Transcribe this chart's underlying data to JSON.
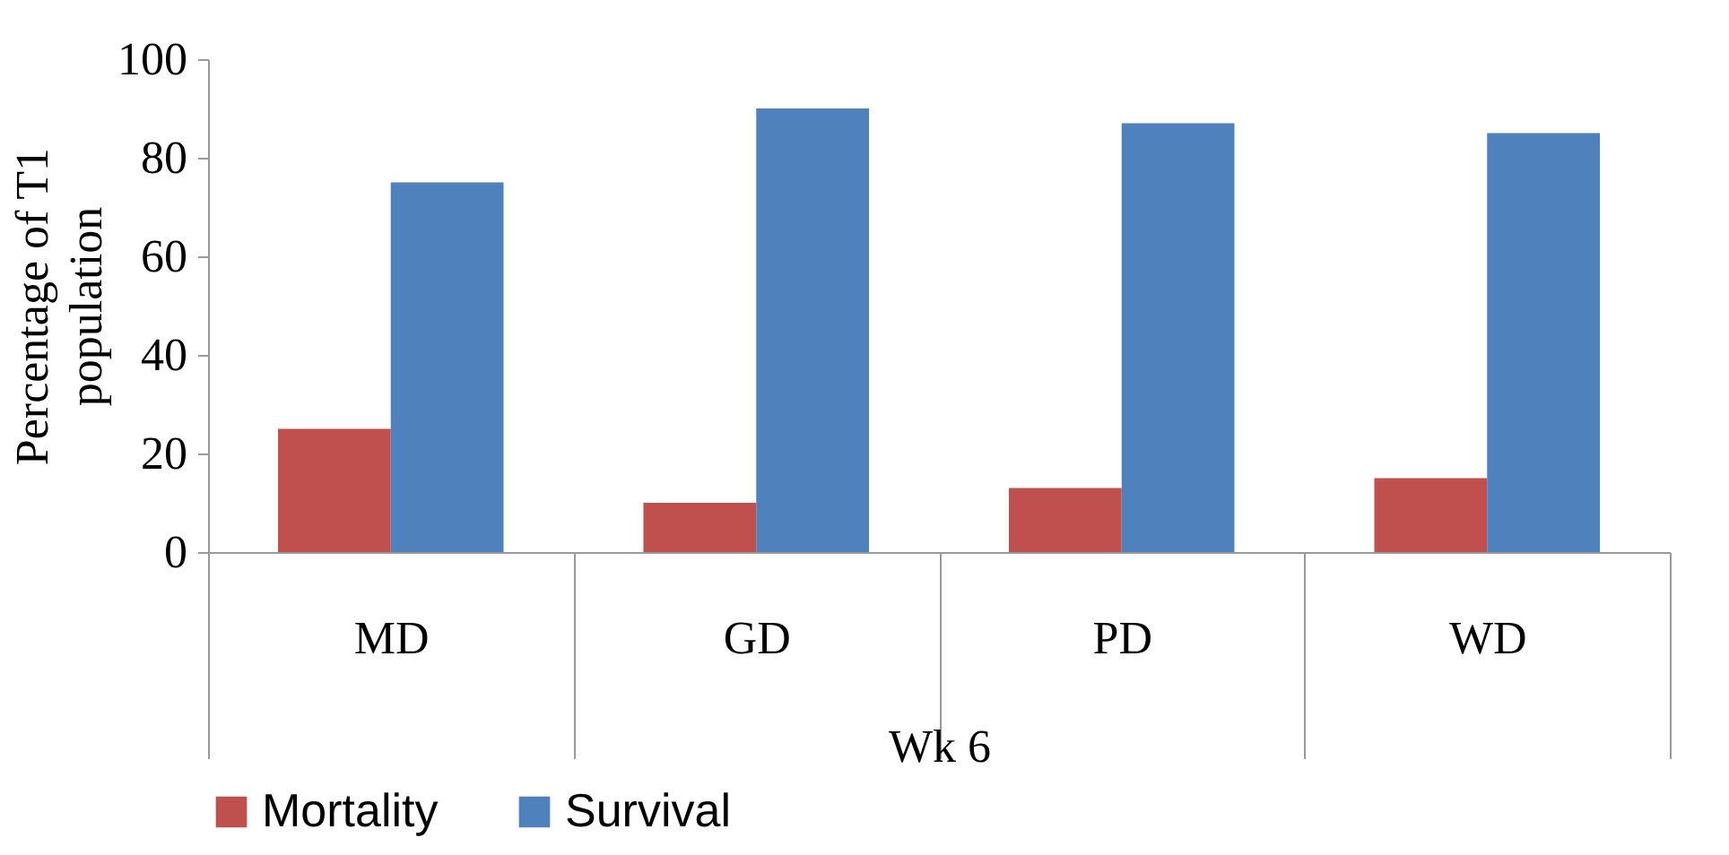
{
  "chart_data": {
    "type": "bar",
    "categories": [
      "MD",
      "GD",
      "PD",
      "WD"
    ],
    "xlabel": "Wk 6",
    "ylabel": "Percentage of  T1 population",
    "series": [
      {
        "name": "Mortality",
        "color": "#c0504d",
        "values": [
          25,
          10,
          13,
          15
        ]
      },
      {
        "name": "Survival",
        "color": "#4f81bd",
        "values": [
          75,
          90,
          87,
          85
        ]
      }
    ],
    "ylim": [
      0,
      100
    ],
    "yticks": [
      0,
      20,
      40,
      60,
      80,
      100
    ],
    "grid": false,
    "legend": "bottom"
  }
}
